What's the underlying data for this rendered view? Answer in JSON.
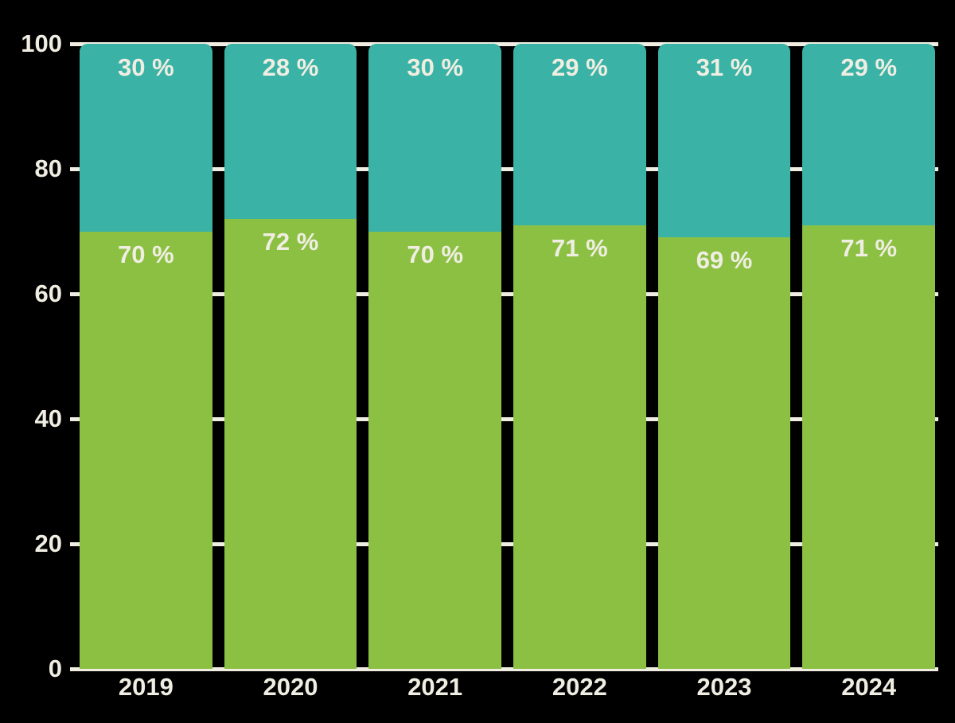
{
  "chart_data": {
    "type": "bar",
    "stacked": true,
    "title": "",
    "categories": [
      "2019",
      "2020",
      "2021",
      "2022",
      "2023",
      "2024"
    ],
    "series": [
      {
        "name": "bottom-segment-green",
        "color": "#8CC043",
        "values": [
          70,
          72,
          70,
          71,
          69,
          71
        ],
        "labels": [
          "70 %",
          "72 %",
          "70 %",
          "71 %",
          "69 %",
          "71 %"
        ]
      },
      {
        "name": "top-segment-teal",
        "color": "#3AB2A6",
        "values": [
          30,
          28,
          30,
          29,
          31,
          29
        ],
        "labels": [
          "30 %",
          "28 %",
          "30 %",
          "29 %",
          "31 %",
          "29 %"
        ]
      }
    ],
    "ylim": [
      0,
      100
    ],
    "yticks": [
      0,
      20,
      40,
      60,
      80,
      100
    ],
    "grid": true,
    "legend": false,
    "colors": {
      "background": "#000000",
      "text": "#F0EEE2",
      "gridline": "#F0EEE2"
    }
  }
}
